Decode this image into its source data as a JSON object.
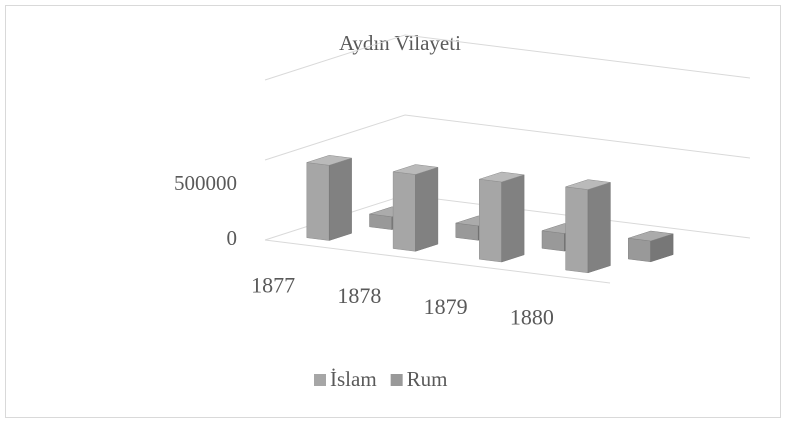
{
  "chart_data": {
    "type": "bar3d",
    "title": "Aydın Vilayeti",
    "categories": [
      "1877",
      "1878",
      "1879",
      "1880"
    ],
    "series": [
      {
        "name": "İslam",
        "color": "#a6a6a6",
        "values": [
          470000,
          480000,
          500000,
          520000
        ]
      },
      {
        "name": "Rum",
        "color": "#999999",
        "values": [
          80000,
          90000,
          110000,
          130000
        ]
      }
    ],
    "ylim": [
      0,
      1000000
    ],
    "yticks": [
      0,
      500000
    ],
    "grid": true,
    "legend": "bottom"
  }
}
